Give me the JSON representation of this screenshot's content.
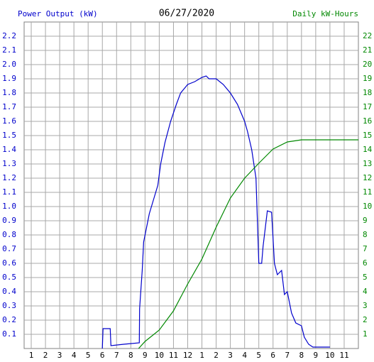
{
  "chart_data": {
    "type": "line",
    "title": "06/27/2020",
    "y_label": "Power Output (kW)",
    "y2_label": "Daily kW-Hours",
    "grid": true,
    "xlim": [
      0.5,
      24
    ],
    "xticks": [
      1,
      2,
      3,
      4,
      5,
      6,
      7,
      8,
      9,
      10,
      11,
      12,
      {
        "value": 13,
        "label": "1"
      },
      {
        "value": 14,
        "label": "2"
      },
      {
        "value": 15,
        "label": "3"
      },
      {
        "value": 16,
        "label": "4"
      },
      {
        "value": 17,
        "label": "5"
      },
      {
        "value": 18,
        "label": "6"
      },
      {
        "value": 19,
        "label": "7"
      },
      {
        "value": 20,
        "label": "8"
      },
      {
        "value": 21,
        "label": "9"
      },
      {
        "value": 22,
        "label": "10"
      },
      {
        "value": 23,
        "label": "11"
      }
    ],
    "ylim": [
      0,
      2.3
    ],
    "yticks": [
      0.1,
      0.2,
      0.3,
      0.4,
      0.5,
      0.6,
      0.7,
      0.8,
      0.9,
      {
        "value": 1,
        "label": "1.0"
      },
      1.1,
      1.2,
      1.3,
      1.4,
      1.5,
      1.6,
      1.7,
      1.8,
      1.9,
      {
        "value": 2,
        "label": "2.0"
      },
      2.1,
      2.2
    ],
    "y2lim": [
      0,
      23
    ],
    "y2ticks": [
      1,
      2,
      3,
      4,
      5,
      6,
      7,
      8,
      9,
      10,
      11,
      12,
      13,
      14,
      15,
      16,
      17,
      18,
      19,
      20,
      21,
      22
    ],
    "series": [
      {
        "name": "Power Output (kW)",
        "color": "#0000cc",
        "x": [
          6.0,
          6.05,
          6.55,
          6.6,
          7.5,
          8.6,
          8.62,
          8.8,
          8.9,
          9.1,
          9.3,
          9.6,
          9.9,
          10.1,
          10.4,
          10.8,
          11.2,
          11.5,
          12.0,
          12.5,
          13.0,
          13.3,
          13.5,
          14.0,
          14.5,
          15.0,
          15.5,
          16.0,
          16.2,
          16.5,
          16.8,
          17.0,
          17.2,
          17.3,
          17.6,
          17.9,
          18.1,
          18.3,
          18.6,
          18.8,
          19.0,
          19.3,
          19.6,
          20.0,
          20.2,
          20.5,
          20.8,
          22.0
        ],
        "values": [
          0,
          0.14,
          0.14,
          0.02,
          0.03,
          0.04,
          0.28,
          0.55,
          0.75,
          0.85,
          0.95,
          1.05,
          1.15,
          1.3,
          1.45,
          1.6,
          1.72,
          1.8,
          1.86,
          1.88,
          1.91,
          1.92,
          1.9,
          1.9,
          1.86,
          1.8,
          1.72,
          1.6,
          1.53,
          1.4,
          1.2,
          0.6,
          0.6,
          0.72,
          0.97,
          0.96,
          0.6,
          0.52,
          0.55,
          0.38,
          0.4,
          0.25,
          0.18,
          0.16,
          0.08,
          0.03,
          0.01,
          0.01
        ]
      },
      {
        "name": "Daily kW-Hours",
        "color": "#008800",
        "axis": "y2",
        "x": [
          8.55,
          9,
          10,
          11,
          12,
          13,
          14,
          15,
          16,
          17,
          18,
          19,
          20,
          24
        ],
        "values": [
          0,
          0.5,
          1.3,
          2.65,
          4.55,
          6.3,
          8.55,
          10.6,
          12.0,
          13.05,
          14.05,
          14.55,
          14.7,
          14.7
        ]
      }
    ]
  }
}
